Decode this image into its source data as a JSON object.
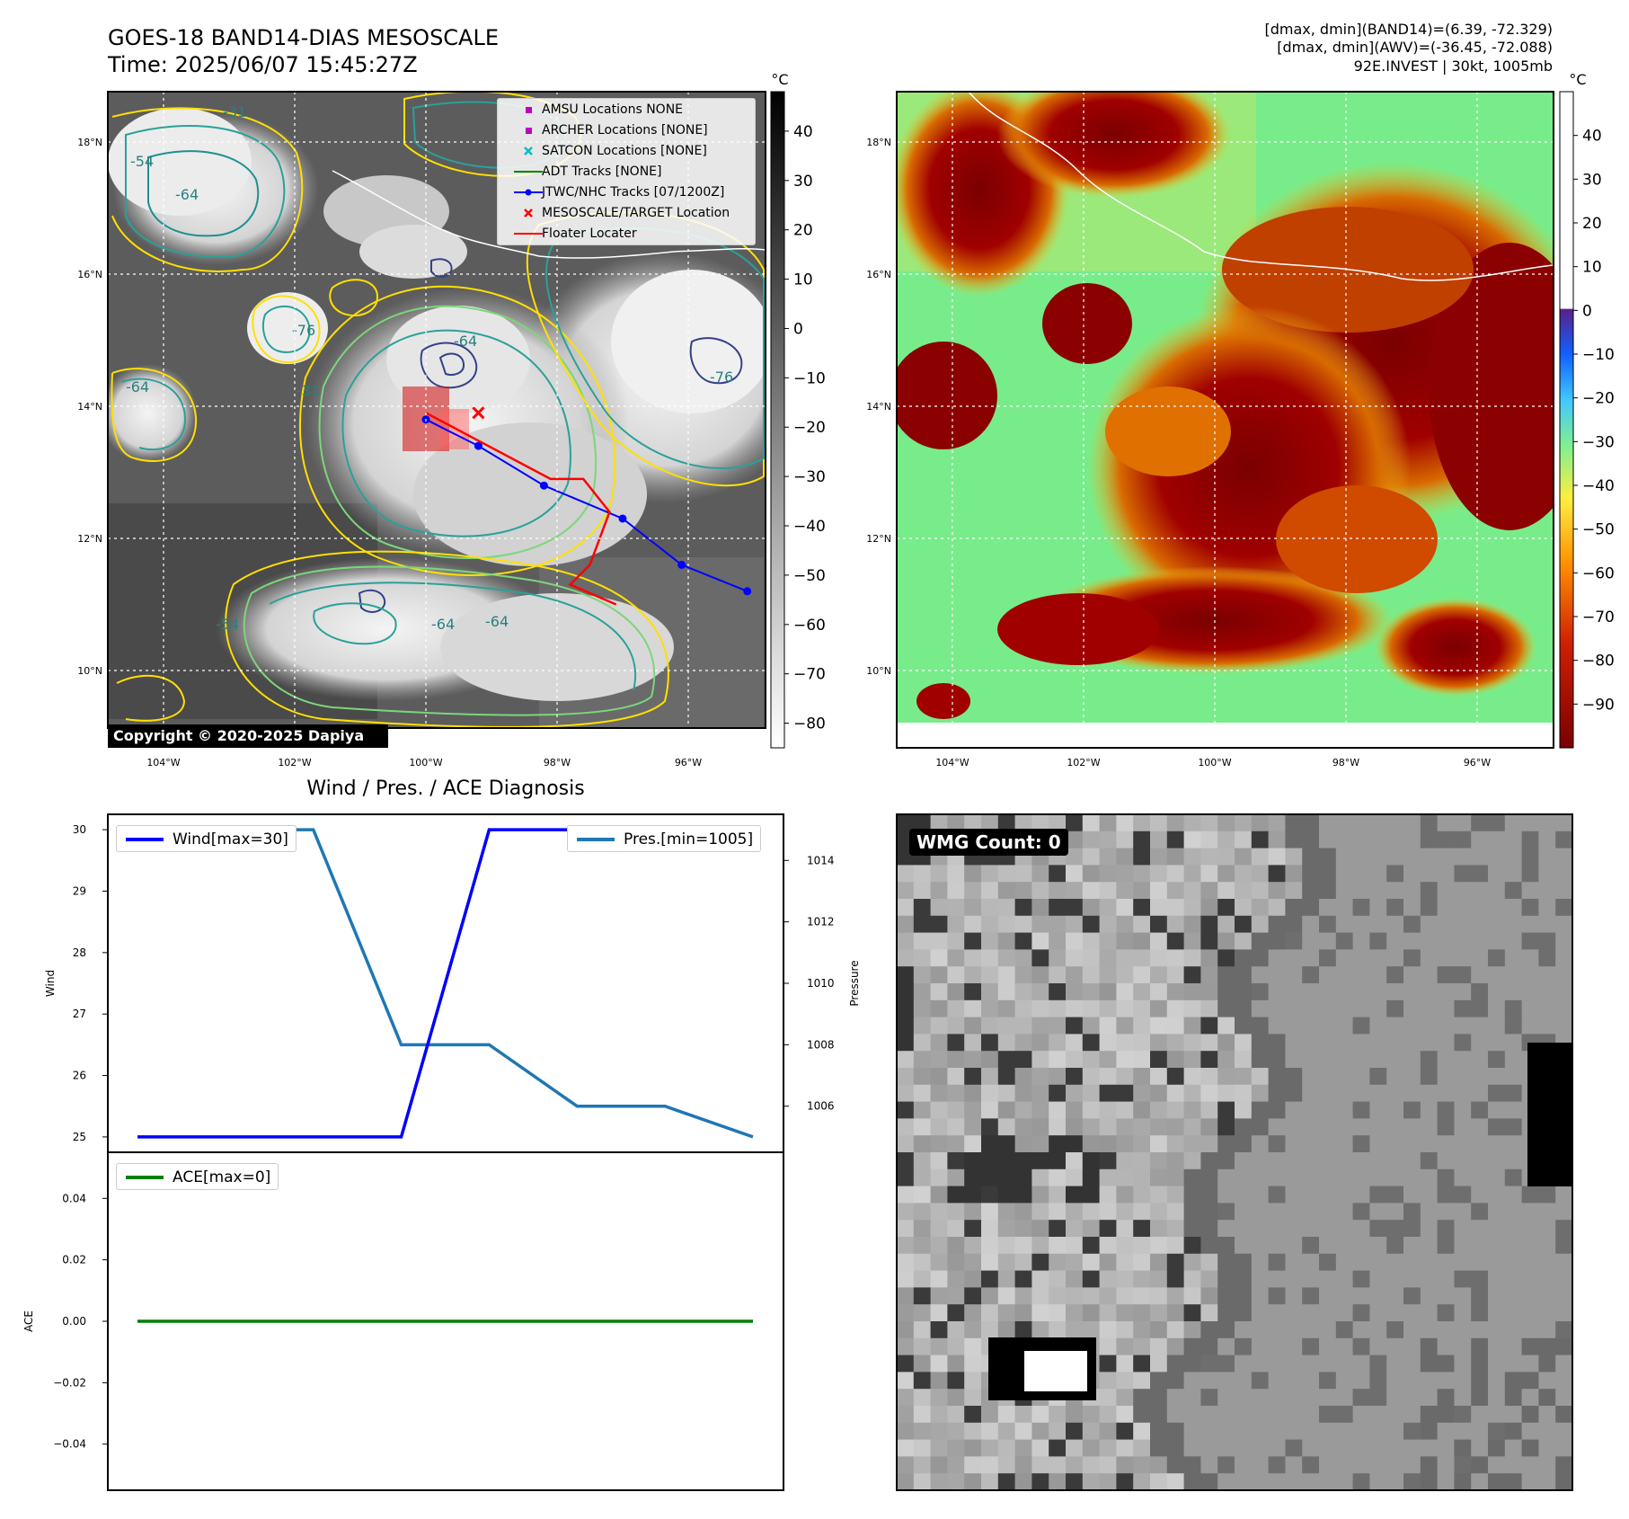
{
  "header": {
    "title_line1": "GOES-18 BAND14-DIAS MESOSCALE",
    "title_line2": "Time: 2025/06/07 15:45:27Z",
    "right_line1": "[dmax, dmin](BAND14)=(6.39, -72.329)",
    "right_line2": "[dmax, dmin](AWV)=(-36.45, -72.088)",
    "right_line3": "92E.INVEST | 30kt, 1005mb"
  },
  "map_panels": {
    "lat_ticks": [
      "18°N",
      "16°N",
      "14°N",
      "12°N",
      "10°N"
    ],
    "lon_ticks": [
      "104°W",
      "102°W",
      "100°W",
      "98°W",
      "96°W"
    ],
    "colorbar_unit": "°C",
    "band14_colorbar_ticks": [
      "40",
      "30",
      "20",
      "10",
      "0",
      "−10",
      "−20",
      "−30",
      "−40",
      "−50",
      "−60",
      "−70",
      "−80"
    ],
    "awv_colorbar_ticks": [
      "40",
      "30",
      "20",
      "10",
      "0",
      "−10",
      "−20",
      "−30",
      "−40",
      "−50",
      "−60",
      "−70",
      "−80",
      "−90"
    ],
    "contour_labels": [
      "-31",
      "-54",
      "-64",
      "-76"
    ],
    "copyright": "Copyright © 2020-2025 Dapiya",
    "legend": [
      {
        "label": "AMSU Locations NONE",
        "color": "#bf00bf",
        "symbol": "square"
      },
      {
        "label": "ARCHER Locations [NONE]",
        "color": "#bf00bf",
        "symbol": "square"
      },
      {
        "label": "SATCON Locations [NONE]",
        "color": "#00bfbf",
        "symbol": "x"
      },
      {
        "label": "ADT Tracks [NONE]",
        "color": "#008000",
        "symbol": "line"
      },
      {
        "label": "JTWC/NHC Tracks [07/1200Z]",
        "color": "#0000ff",
        "symbol": "line-dot"
      },
      {
        "label": "MESOSCALE/TARGET Location",
        "color": "#ff0000",
        "symbol": "x"
      },
      {
        "label": "Floater Locater",
        "color": "#ff0000",
        "symbol": "line"
      }
    ],
    "jtwc_track": [
      [
        95.1,
        11.2
      ],
      [
        96.1,
        11.6
      ],
      [
        97.0,
        12.3
      ],
      [
        98.2,
        12.8
      ],
      [
        99.2,
        13.4
      ],
      [
        100.0,
        13.8
      ]
    ],
    "floater_track": [
      [
        100.0,
        13.9
      ],
      [
        98.1,
        12.9
      ],
      [
        97.6,
        12.9
      ],
      [
        97.2,
        12.4
      ],
      [
        97.5,
        11.6
      ],
      [
        97.8,
        11.3
      ],
      [
        97.1,
        11.0
      ]
    ],
    "target_location": [
      99.2,
      13.9
    ]
  },
  "diagnosis": {
    "title": "Wind / Pres. / ACE Diagnosis",
    "wind_legend": "Wind[max=30]",
    "pres_legend": "Pres.[min=1005]",
    "ace_legend": "ACE[max=0]",
    "wind_axis_label": "Wind",
    "pres_axis_label": "Pressure",
    "ace_axis_label": "ACE",
    "wind_color": "#0000ff",
    "pres_color": "#1f77b4",
    "ace_color": "#008000",
    "wmg_count": "WMG Count: 0"
  },
  "chart_data": [
    {
      "type": "line",
      "x": [
        0,
        1,
        2,
        3,
        4,
        5,
        6,
        7
      ],
      "series": [
        {
          "name": "Wind[max=30]",
          "axis": "left",
          "values": [
            25,
            25,
            25,
            25,
            30,
            30,
            30,
            30
          ]
        },
        {
          "name": "Pres.[min=1005]",
          "axis": "right",
          "values": [
            1015,
            1015,
            1015,
            1008,
            1008,
            1006,
            1006,
            1005
          ]
        }
      ],
      "ylabel": "Wind",
      "y2label": "Pressure",
      "ylim": [
        24.75,
        30.25
      ],
      "y2lim": [
        1004.5,
        1015.5
      ],
      "yticks": [
        25,
        26,
        27,
        28,
        29,
        30
      ],
      "y2ticks": [
        1006,
        1008,
        1010,
        1012,
        1014
      ]
    },
    {
      "type": "line",
      "x": [
        0,
        1,
        2,
        3,
        4,
        5,
        6,
        7
      ],
      "series": [
        {
          "name": "ACE[max=0]",
          "values": [
            0,
            0,
            0,
            0,
            0,
            0,
            0,
            0
          ]
        }
      ],
      "ylabel": "ACE",
      "ylim": [
        -0.055,
        0.055
      ],
      "yticks": [
        "0.04",
        "0.02",
        "0.00",
        "−0.02",
        "−0.04"
      ]
    }
  ]
}
